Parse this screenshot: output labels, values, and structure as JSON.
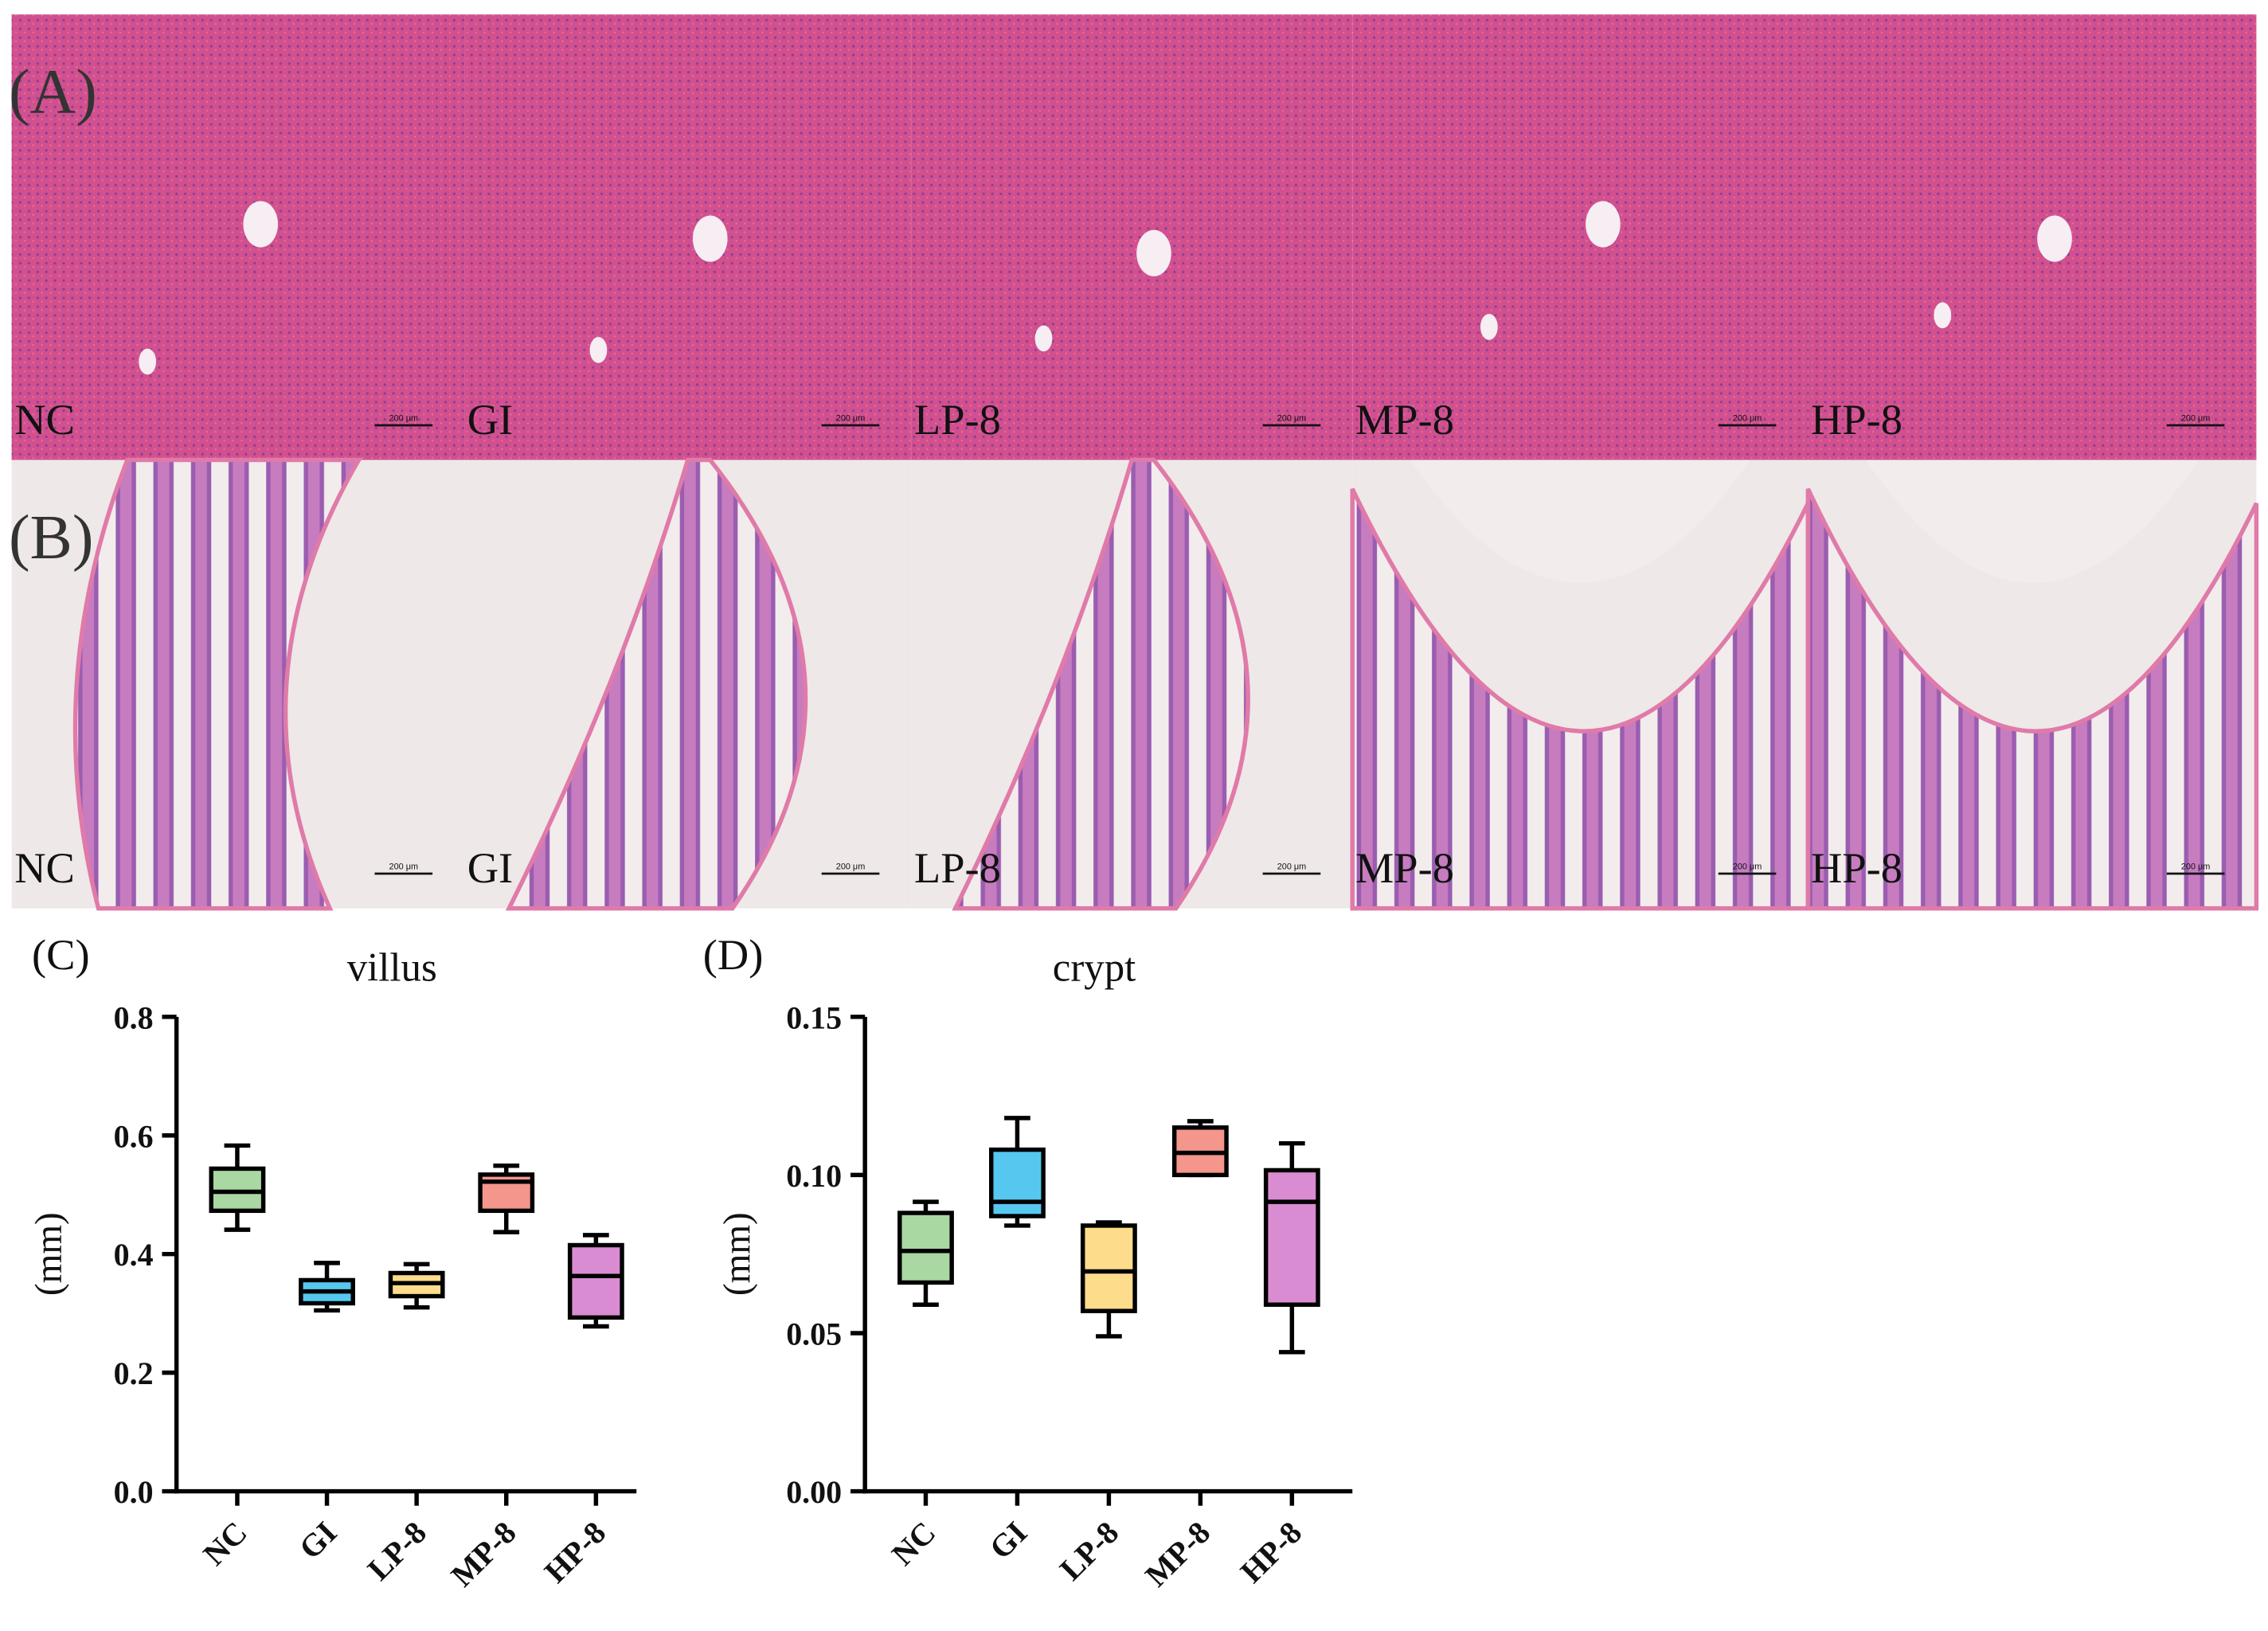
{
  "panels": [
    {
      "label": "(A)",
      "images": [
        "NC",
        "GI",
        "LP-8",
        "MP-8",
        "HP-8"
      ]
    },
    {
      "label": "(B)",
      "images": [
        "NC",
        "GI",
        "LP-8",
        "MP-8",
        "HP-8"
      ]
    }
  ],
  "scale_bar": "200 μm",
  "chart_data": [
    {
      "type": "box",
      "panel_label": "(C)",
      "title": "villus",
      "ylabel": "(mm)",
      "categories": [
        "NC",
        "GI",
        "LP-8",
        "MP-8",
        "HP-8"
      ],
      "boxes": [
        {
          "color": "#a9d8a3",
          "min": 0.441,
          "q1": 0.473,
          "median": 0.505,
          "q3": 0.544,
          "max": 0.583
        },
        {
          "color": "#56c8ef",
          "min": 0.305,
          "q1": 0.317,
          "median": 0.337,
          "q3": 0.356,
          "max": 0.385
        },
        {
          "color": "#fddc8c",
          "min": 0.31,
          "q1": 0.329,
          "median": 0.351,
          "q3": 0.368,
          "max": 0.383
        },
        {
          "color": "#f4968b",
          "min": 0.437,
          "q1": 0.473,
          "median": 0.522,
          "q3": 0.534,
          "max": 0.549
        },
        {
          "color": "#d98cd1",
          "min": 0.278,
          "q1": 0.293,
          "median": 0.363,
          "q3": 0.415,
          "max": 0.432
        }
      ],
      "ylim": [
        0,
        0.8
      ],
      "yticks": [
        {
          "value": 0,
          "label": "0.0"
        },
        0.2,
        0.4,
        0.6,
        0.8
      ]
    },
    {
      "type": "box",
      "panel_label": "(D)",
      "title": "crypt",
      "ylabel": "(mm)",
      "categories": [
        "NC",
        "GI",
        "LP-8",
        "MP-8",
        "HP-8"
      ],
      "boxes": [
        {
          "color": "#a9d8a3",
          "min": 0.059,
          "q1": 0.066,
          "median": 0.076,
          "q3": 0.088,
          "max": 0.0915
        },
        {
          "color": "#56c8ef",
          "min": 0.084,
          "q1": 0.087,
          "median": 0.0915,
          "q3": 0.108,
          "max": 0.118
        },
        {
          "color": "#fddc8c",
          "min": 0.049,
          "q1": 0.057,
          "median": 0.0695,
          "q3": 0.084,
          "max": 0.085
        },
        {
          "color": "#f4968b",
          "min": 0.1,
          "q1": 0.1,
          "median": 0.107,
          "q3": 0.115,
          "max": 0.117
        },
        {
          "color": "#d98cd1",
          "min": 0.044,
          "q1": 0.059,
          "median": 0.0915,
          "q3": 0.1015,
          "max": 0.11
        }
      ],
      "ylim": [
        0,
        0.15
      ],
      "yticks": [
        {
          "value": 0,
          "label": "0.00"
        },
        {
          "value": 0.05,
          "label": "0.05"
        },
        {
          "value": 0.1,
          "label": "0.10"
        },
        {
          "value": 0.15,
          "label": "0.15"
        }
      ]
    }
  ]
}
